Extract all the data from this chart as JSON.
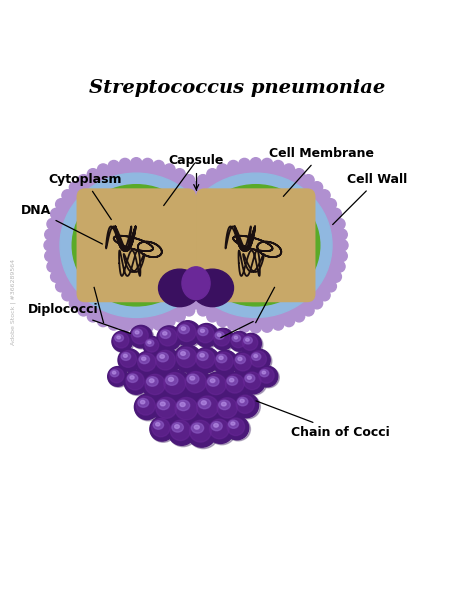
{
  "title": "Streptococcus pneumoniae",
  "title_fontsize": 14,
  "title_fontweight": "bold",
  "bg_color": "#ffffff",
  "cell_wall_color": "#b090d0",
  "cell_wall_bumpy_color": "#a080c0",
  "cytoplasm_blue_color": "#90b8e0",
  "membrane_green_color": "#5aaa28",
  "membrane_dark_color": "#1a2a0a",
  "cytoplasm_tan_color": "#c8a868",
  "dna_color": "#1a1010",
  "diplococci_base": "#4a1878",
  "diplococci_mid": "#6a2898",
  "diplococci_highlight": "#9060c8",
  "diplococci_bright": "#b890e8",
  "connection_color": "#3a1060",
  "label_fontsize": 9,
  "label_fontweight": "bold",
  "cocci": [
    [
      0.255,
      0.415,
      0.022
    ],
    [
      0.295,
      0.425,
      0.024
    ],
    [
      0.32,
      0.405,
      0.02
    ],
    [
      0.355,
      0.422,
      0.026
    ],
    [
      0.395,
      0.432,
      0.027
    ],
    [
      0.435,
      0.428,
      0.025
    ],
    [
      0.47,
      0.42,
      0.023
    ],
    [
      0.505,
      0.415,
      0.021
    ],
    [
      0.53,
      0.41,
      0.022
    ],
    [
      0.27,
      0.375,
      0.024
    ],
    [
      0.31,
      0.368,
      0.026
    ],
    [
      0.35,
      0.372,
      0.028
    ],
    [
      0.395,
      0.378,
      0.029
    ],
    [
      0.435,
      0.375,
      0.027
    ],
    [
      0.475,
      0.37,
      0.026
    ],
    [
      0.515,
      0.368,
      0.025
    ],
    [
      0.548,
      0.375,
      0.023
    ],
    [
      0.285,
      0.328,
      0.026
    ],
    [
      0.328,
      0.32,
      0.029
    ],
    [
      0.37,
      0.322,
      0.031
    ],
    [
      0.415,
      0.325,
      0.03
    ],
    [
      0.458,
      0.32,
      0.029
    ],
    [
      0.498,
      0.322,
      0.027
    ],
    [
      0.535,
      0.328,
      0.025
    ],
    [
      0.308,
      0.275,
      0.027
    ],
    [
      0.352,
      0.27,
      0.03
    ],
    [
      0.395,
      0.268,
      0.032
    ],
    [
      0.44,
      0.272,
      0.031
    ],
    [
      0.482,
      0.27,
      0.029
    ],
    [
      0.52,
      0.278,
      0.026
    ],
    [
      0.34,
      0.228,
      0.026
    ],
    [
      0.382,
      0.222,
      0.029
    ],
    [
      0.425,
      0.22,
      0.031
    ],
    [
      0.465,
      0.225,
      0.028
    ],
    [
      0.5,
      0.23,
      0.025
    ],
    [
      0.565,
      0.34,
      0.022
    ],
    [
      0.245,
      0.34,
      0.021
    ]
  ]
}
